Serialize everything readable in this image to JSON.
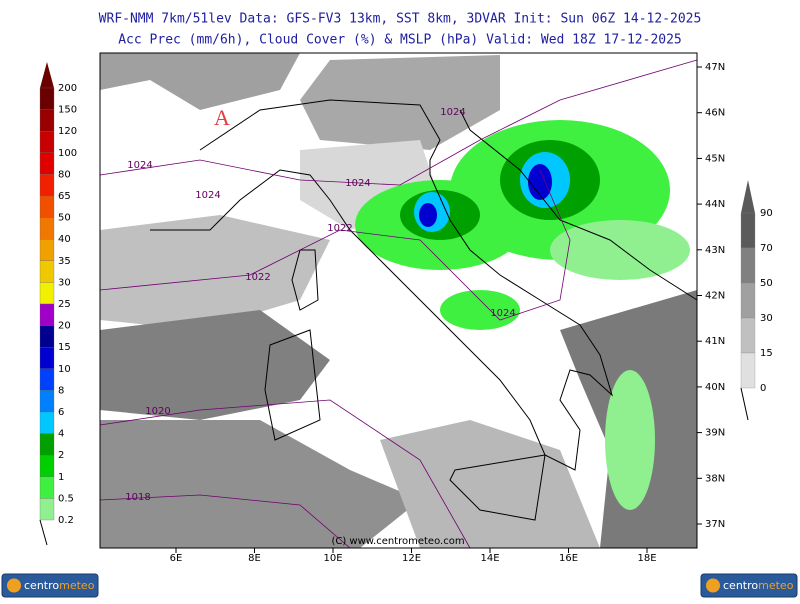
{
  "header": {
    "line1": "WRF-NMM 7km/51lev   Data: GFS-FV3 13km, SST 8km, 3DVAR   Init: Sun 06Z 14-12-2025",
    "line2": "Acc Prec (mm/6h), Cloud Cover (%) & MSLP (hPa)  Valid: Wed 18Z 17-12-2025"
  },
  "map": {
    "lat_labels": [
      "47N",
      "46N",
      "45N",
      "44N",
      "43N",
      "42N",
      "41N",
      "40N",
      "39N",
      "38N",
      "37N"
    ],
    "lon_labels": [
      "6E",
      "8E",
      "10E",
      "12E",
      "14E",
      "16E",
      "18E"
    ],
    "isobars": [
      "1024",
      "1024",
      "1024",
      "1024",
      "1022",
      "1022",
      "1024",
      "1020",
      "1018"
    ],
    "high_marker": "A",
    "copyright": "(C) www.centrometeo.com"
  },
  "precip_legend": {
    "levels": [
      {
        "label": "200",
        "color": "#6a0000"
      },
      {
        "label": "150",
        "color": "#9a0000"
      },
      {
        "label": "120",
        "color": "#c80000"
      },
      {
        "label": "100",
        "color": "#e00000"
      },
      {
        "label": "80",
        "color": "#f02000"
      },
      {
        "label": "65",
        "color": "#f05000"
      },
      {
        "label": "50",
        "color": "#f07800"
      },
      {
        "label": "40",
        "color": "#f0a000"
      },
      {
        "label": "35",
        "color": "#f0c800"
      },
      {
        "label": "30",
        "color": "#f0f000"
      },
      {
        "label": "25",
        "color": "#a000c8"
      },
      {
        "label": "20",
        "color": "#000090"
      },
      {
        "label": "15",
        "color": "#0000d0"
      },
      {
        "label": "10",
        "color": "#0040ff"
      },
      {
        "label": "8",
        "color": "#0080ff"
      },
      {
        "label": "6",
        "color": "#00c8ff"
      },
      {
        "label": "4",
        "color": "#00a000"
      },
      {
        "label": "2",
        "color": "#00d000"
      },
      {
        "label": "1",
        "color": "#40f040"
      },
      {
        "label": "0.5",
        "color": "#90f090"
      },
      {
        "label": "0.2",
        "color": "#d8f8d8"
      }
    ]
  },
  "cloud_legend": {
    "levels": [
      {
        "label": "90",
        "color": "#5a5a5a"
      },
      {
        "label": "70",
        "color": "#808080"
      },
      {
        "label": "50",
        "color": "#a0a0a0"
      },
      {
        "label": "30",
        "color": "#c0c0c0"
      },
      {
        "label": "15",
        "color": "#e0e0e0"
      },
      {
        "label": "0",
        "color": "#ffffff"
      }
    ]
  },
  "logos": [
    {
      "part1": "centro",
      "part2": "meteo"
    },
    {
      "part1": "centro",
      "part2": "meteo"
    }
  ]
}
